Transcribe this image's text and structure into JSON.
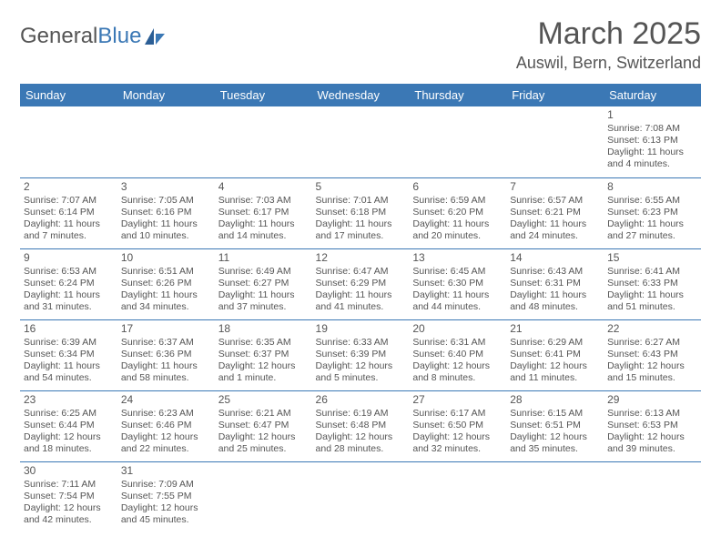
{
  "brand": {
    "part1": "General",
    "part2": "Blue"
  },
  "title": "March 2025",
  "location": "Auswil, Bern, Switzerland",
  "colors": {
    "accent": "#3b78b5",
    "text": "#555555",
    "bg": "#ffffff"
  },
  "dayHeaders": [
    "Sunday",
    "Monday",
    "Tuesday",
    "Wednesday",
    "Thursday",
    "Friday",
    "Saturday"
  ],
  "weeks": [
    [
      null,
      null,
      null,
      null,
      null,
      null,
      {
        "n": "1",
        "sr": "Sunrise: 7:08 AM",
        "ss": "Sunset: 6:13 PM",
        "d1": "Daylight: 11 hours",
        "d2": "and 4 minutes."
      }
    ],
    [
      {
        "n": "2",
        "sr": "Sunrise: 7:07 AM",
        "ss": "Sunset: 6:14 PM",
        "d1": "Daylight: 11 hours",
        "d2": "and 7 minutes."
      },
      {
        "n": "3",
        "sr": "Sunrise: 7:05 AM",
        "ss": "Sunset: 6:16 PM",
        "d1": "Daylight: 11 hours",
        "d2": "and 10 minutes."
      },
      {
        "n": "4",
        "sr": "Sunrise: 7:03 AM",
        "ss": "Sunset: 6:17 PM",
        "d1": "Daylight: 11 hours",
        "d2": "and 14 minutes."
      },
      {
        "n": "5",
        "sr": "Sunrise: 7:01 AM",
        "ss": "Sunset: 6:18 PM",
        "d1": "Daylight: 11 hours",
        "d2": "and 17 minutes."
      },
      {
        "n": "6",
        "sr": "Sunrise: 6:59 AM",
        "ss": "Sunset: 6:20 PM",
        "d1": "Daylight: 11 hours",
        "d2": "and 20 minutes."
      },
      {
        "n": "7",
        "sr": "Sunrise: 6:57 AM",
        "ss": "Sunset: 6:21 PM",
        "d1": "Daylight: 11 hours",
        "d2": "and 24 minutes."
      },
      {
        "n": "8",
        "sr": "Sunrise: 6:55 AM",
        "ss": "Sunset: 6:23 PM",
        "d1": "Daylight: 11 hours",
        "d2": "and 27 minutes."
      }
    ],
    [
      {
        "n": "9",
        "sr": "Sunrise: 6:53 AM",
        "ss": "Sunset: 6:24 PM",
        "d1": "Daylight: 11 hours",
        "d2": "and 31 minutes."
      },
      {
        "n": "10",
        "sr": "Sunrise: 6:51 AM",
        "ss": "Sunset: 6:26 PM",
        "d1": "Daylight: 11 hours",
        "d2": "and 34 minutes."
      },
      {
        "n": "11",
        "sr": "Sunrise: 6:49 AM",
        "ss": "Sunset: 6:27 PM",
        "d1": "Daylight: 11 hours",
        "d2": "and 37 minutes."
      },
      {
        "n": "12",
        "sr": "Sunrise: 6:47 AM",
        "ss": "Sunset: 6:29 PM",
        "d1": "Daylight: 11 hours",
        "d2": "and 41 minutes."
      },
      {
        "n": "13",
        "sr": "Sunrise: 6:45 AM",
        "ss": "Sunset: 6:30 PM",
        "d1": "Daylight: 11 hours",
        "d2": "and 44 minutes."
      },
      {
        "n": "14",
        "sr": "Sunrise: 6:43 AM",
        "ss": "Sunset: 6:31 PM",
        "d1": "Daylight: 11 hours",
        "d2": "and 48 minutes."
      },
      {
        "n": "15",
        "sr": "Sunrise: 6:41 AM",
        "ss": "Sunset: 6:33 PM",
        "d1": "Daylight: 11 hours",
        "d2": "and 51 minutes."
      }
    ],
    [
      {
        "n": "16",
        "sr": "Sunrise: 6:39 AM",
        "ss": "Sunset: 6:34 PM",
        "d1": "Daylight: 11 hours",
        "d2": "and 54 minutes."
      },
      {
        "n": "17",
        "sr": "Sunrise: 6:37 AM",
        "ss": "Sunset: 6:36 PM",
        "d1": "Daylight: 11 hours",
        "d2": "and 58 minutes."
      },
      {
        "n": "18",
        "sr": "Sunrise: 6:35 AM",
        "ss": "Sunset: 6:37 PM",
        "d1": "Daylight: 12 hours",
        "d2": "and 1 minute."
      },
      {
        "n": "19",
        "sr": "Sunrise: 6:33 AM",
        "ss": "Sunset: 6:39 PM",
        "d1": "Daylight: 12 hours",
        "d2": "and 5 minutes."
      },
      {
        "n": "20",
        "sr": "Sunrise: 6:31 AM",
        "ss": "Sunset: 6:40 PM",
        "d1": "Daylight: 12 hours",
        "d2": "and 8 minutes."
      },
      {
        "n": "21",
        "sr": "Sunrise: 6:29 AM",
        "ss": "Sunset: 6:41 PM",
        "d1": "Daylight: 12 hours",
        "d2": "and 11 minutes."
      },
      {
        "n": "22",
        "sr": "Sunrise: 6:27 AM",
        "ss": "Sunset: 6:43 PM",
        "d1": "Daylight: 12 hours",
        "d2": "and 15 minutes."
      }
    ],
    [
      {
        "n": "23",
        "sr": "Sunrise: 6:25 AM",
        "ss": "Sunset: 6:44 PM",
        "d1": "Daylight: 12 hours",
        "d2": "and 18 minutes."
      },
      {
        "n": "24",
        "sr": "Sunrise: 6:23 AM",
        "ss": "Sunset: 6:46 PM",
        "d1": "Daylight: 12 hours",
        "d2": "and 22 minutes."
      },
      {
        "n": "25",
        "sr": "Sunrise: 6:21 AM",
        "ss": "Sunset: 6:47 PM",
        "d1": "Daylight: 12 hours",
        "d2": "and 25 minutes."
      },
      {
        "n": "26",
        "sr": "Sunrise: 6:19 AM",
        "ss": "Sunset: 6:48 PM",
        "d1": "Daylight: 12 hours",
        "d2": "and 28 minutes."
      },
      {
        "n": "27",
        "sr": "Sunrise: 6:17 AM",
        "ss": "Sunset: 6:50 PM",
        "d1": "Daylight: 12 hours",
        "d2": "and 32 minutes."
      },
      {
        "n": "28",
        "sr": "Sunrise: 6:15 AM",
        "ss": "Sunset: 6:51 PM",
        "d1": "Daylight: 12 hours",
        "d2": "and 35 minutes."
      },
      {
        "n": "29",
        "sr": "Sunrise: 6:13 AM",
        "ss": "Sunset: 6:53 PM",
        "d1": "Daylight: 12 hours",
        "d2": "and 39 minutes."
      }
    ],
    [
      {
        "n": "30",
        "sr": "Sunrise: 7:11 AM",
        "ss": "Sunset: 7:54 PM",
        "d1": "Daylight: 12 hours",
        "d2": "and 42 minutes."
      },
      {
        "n": "31",
        "sr": "Sunrise: 7:09 AM",
        "ss": "Sunset: 7:55 PM",
        "d1": "Daylight: 12 hours",
        "d2": "and 45 minutes."
      },
      null,
      null,
      null,
      null,
      null
    ]
  ]
}
